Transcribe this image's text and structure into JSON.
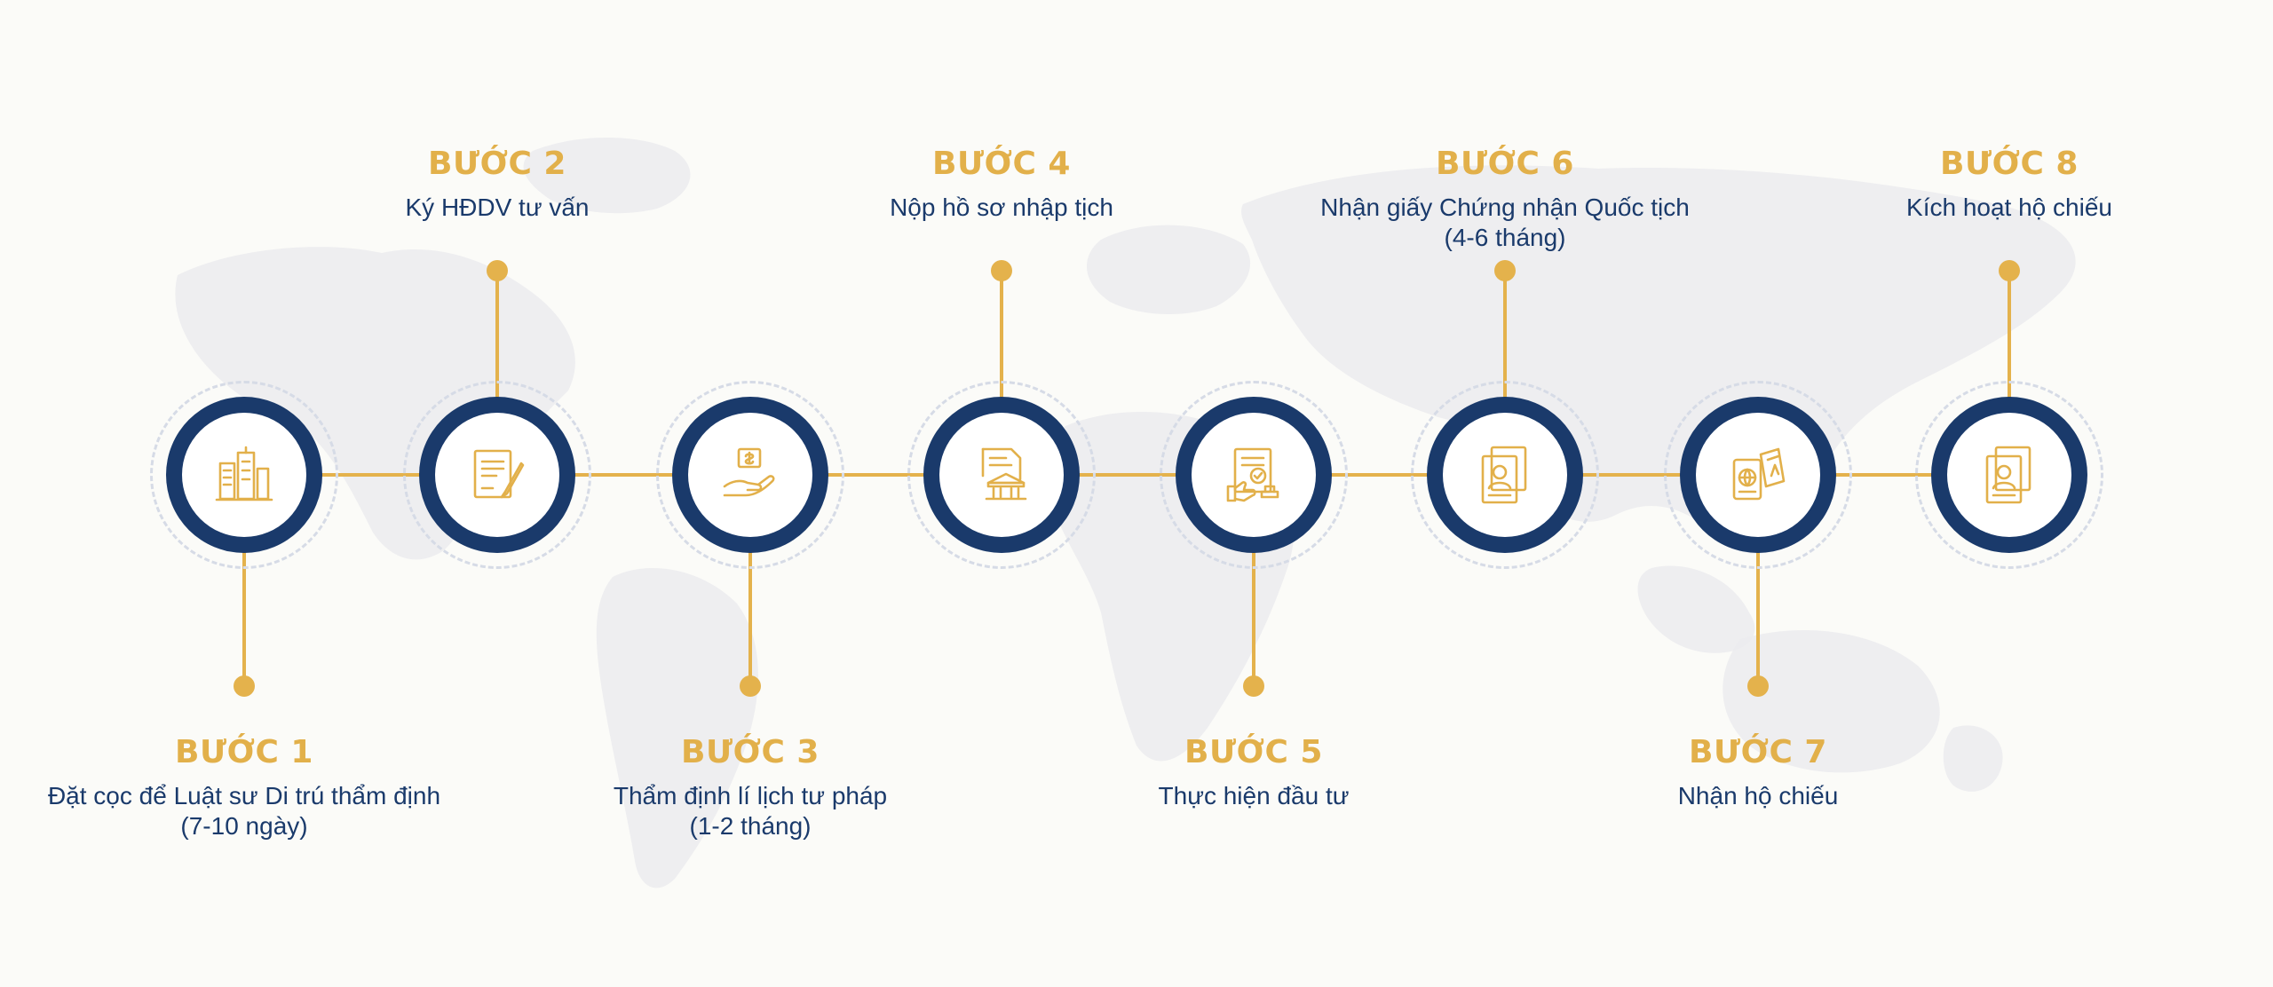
{
  "colors": {
    "navy": "#1a3a6b",
    "gold": "#e2b04a",
    "background": "#fbfbf8"
  },
  "steps": [
    {
      "title": "BƯỚC 1",
      "desc": "Đặt cọc để Luật sư Di trú thẩm định",
      "note": "(7-10 ngày)",
      "icon": "buildings-icon"
    },
    {
      "title": "BƯỚC 2",
      "desc": "Ký HĐDV tư vấn",
      "note": "",
      "icon": "contract-signing-icon"
    },
    {
      "title": "BƯỚC 3",
      "desc": "Thẩm định lí lịch tư pháp",
      "note": "(1-2 tháng)",
      "icon": "hand-money-icon"
    },
    {
      "title": "BƯỚC 4",
      "desc": "Nộp hồ sơ nhập tịch",
      "note": "",
      "icon": "government-document-icon"
    },
    {
      "title": "BƯỚC 5",
      "desc": "Thực hiện đầu tư",
      "note": "",
      "icon": "approved-investment-icon"
    },
    {
      "title": "BƯỚC 6",
      "desc": "Nhận giấy Chứng nhận Quốc tịch",
      "note": "(4-6 tháng)",
      "icon": "citizenship-certificate-icon"
    },
    {
      "title": "BƯỚC 7",
      "desc": "Nhận hộ chiếu",
      "note": "",
      "icon": "passport-icon"
    },
    {
      "title": "BƯỚC 8",
      "desc": "Kích hoạt hộ chiếu",
      "note": "",
      "icon": "passport-profile-icon"
    }
  ]
}
